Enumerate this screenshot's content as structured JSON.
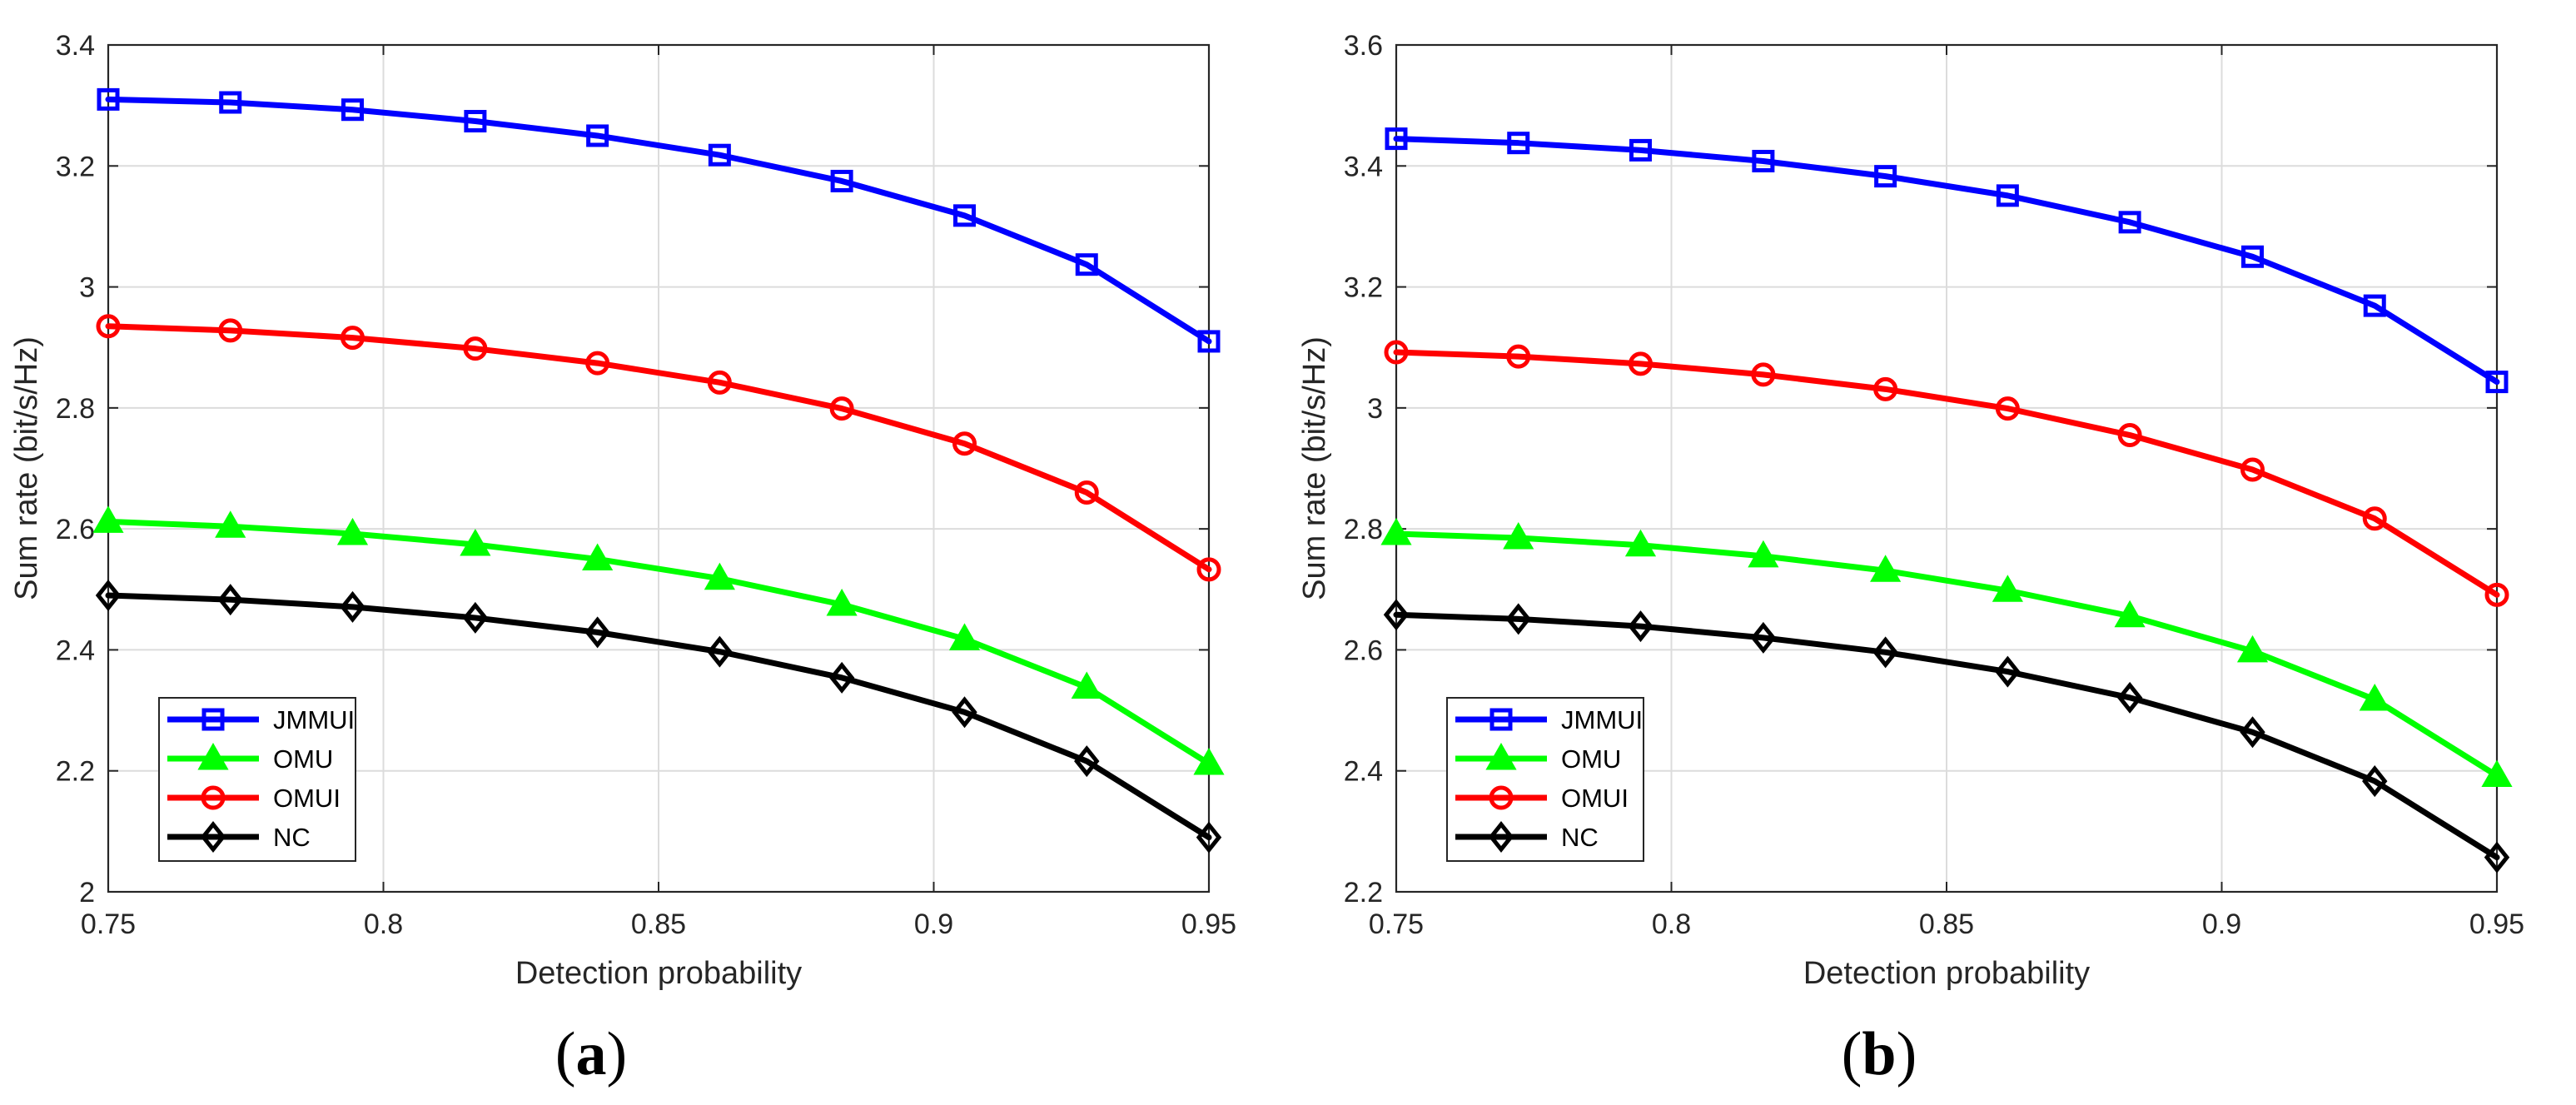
{
  "chart_data": [
    {
      "panel": "a",
      "caption_letter": "a",
      "type": "line",
      "title": "",
      "xlabel": "Detection probability",
      "ylabel": "Sum rate (bit/s/Hz)",
      "xlim": [
        0.75,
        0.95
      ],
      "ylim": [
        2,
        3.4
      ],
      "xticks": [
        0.75,
        0.8,
        0.85,
        0.9,
        0.95
      ],
      "xtick_labels": [
        "0.75",
        "0.8",
        "0.85",
        "0.9",
        "0.95"
      ],
      "yticks": [
        2,
        2.2,
        2.4,
        2.6,
        2.8,
        3,
        3.2,
        3.4
      ],
      "ytick_labels": [
        "2",
        "2.2",
        "2.4",
        "2.6",
        "2.8",
        "3",
        "3.2",
        "3.4"
      ],
      "grid": true,
      "legend_position": "bottom-left",
      "x": [
        0.75,
        0.7722,
        0.7944,
        0.8167,
        0.8389,
        0.8611,
        0.8833,
        0.9056,
        0.9278,
        0.95
      ],
      "series": [
        {
          "name": "JMMUI",
          "color": "#0000ff",
          "marker": "square",
          "values": [
            3.31,
            3.305,
            3.293,
            3.274,
            3.25,
            3.218,
            3.175,
            3.118,
            3.037,
            2.91
          ]
        },
        {
          "name": "OMU",
          "color": "#00ff00",
          "marker": "triangle",
          "values": [
            2.612,
            2.604,
            2.592,
            2.574,
            2.55,
            2.518,
            2.475,
            2.418,
            2.338,
            2.212
          ]
        },
        {
          "name": "OMUI",
          "color": "#ff0000",
          "marker": "circle",
          "values": [
            2.935,
            2.928,
            2.916,
            2.898,
            2.874,
            2.842,
            2.799,
            2.741,
            2.66,
            2.533
          ]
        },
        {
          "name": "NC",
          "color": "#000000",
          "marker": "diamond",
          "values": [
            2.49,
            2.483,
            2.471,
            2.453,
            2.429,
            2.397,
            2.354,
            2.297,
            2.216,
            2.09
          ]
        }
      ]
    },
    {
      "panel": "b",
      "caption_letter": "b",
      "type": "line",
      "title": "",
      "xlabel": "Detection probability",
      "ylabel": "Sum rate (bit/s/Hz)",
      "xlim": [
        0.75,
        0.95
      ],
      "ylim": [
        2.2,
        3.6
      ],
      "xticks": [
        0.75,
        0.8,
        0.85,
        0.9,
        0.95
      ],
      "xtick_labels": [
        "0.75",
        "0.8",
        "0.85",
        "0.9",
        "0.95"
      ],
      "yticks": [
        2.2,
        2.4,
        2.6,
        2.8,
        3,
        3.2,
        3.4,
        3.6
      ],
      "ytick_labels": [
        "2.2",
        "2.4",
        "2.6",
        "2.8",
        "3",
        "3.2",
        "3.4",
        "3.6"
      ],
      "grid": true,
      "legend_position": "bottom-left",
      "x": [
        0.75,
        0.7722,
        0.7944,
        0.8167,
        0.8389,
        0.8611,
        0.8833,
        0.9056,
        0.9278,
        0.95
      ],
      "series": [
        {
          "name": "JMMUI",
          "color": "#0000ff",
          "marker": "square",
          "values": [
            3.445,
            3.438,
            3.426,
            3.408,
            3.383,
            3.351,
            3.307,
            3.25,
            3.169,
            3.043
          ]
        },
        {
          "name": "OMU",
          "color": "#00ff00",
          "marker": "triangle",
          "values": [
            2.792,
            2.785,
            2.773,
            2.755,
            2.731,
            2.698,
            2.656,
            2.598,
            2.518,
            2.392
          ]
        },
        {
          "name": "OMUI",
          "color": "#ff0000",
          "marker": "circle",
          "values": [
            3.092,
            3.085,
            3.073,
            3.055,
            3.031,
            2.999,
            2.955,
            2.898,
            2.817,
            2.691
          ]
        },
        {
          "name": "NC",
          "color": "#000000",
          "marker": "diamond",
          "values": [
            2.658,
            2.651,
            2.639,
            2.62,
            2.596,
            2.564,
            2.521,
            2.464,
            2.383,
            2.257
          ]
        }
      ]
    }
  ]
}
